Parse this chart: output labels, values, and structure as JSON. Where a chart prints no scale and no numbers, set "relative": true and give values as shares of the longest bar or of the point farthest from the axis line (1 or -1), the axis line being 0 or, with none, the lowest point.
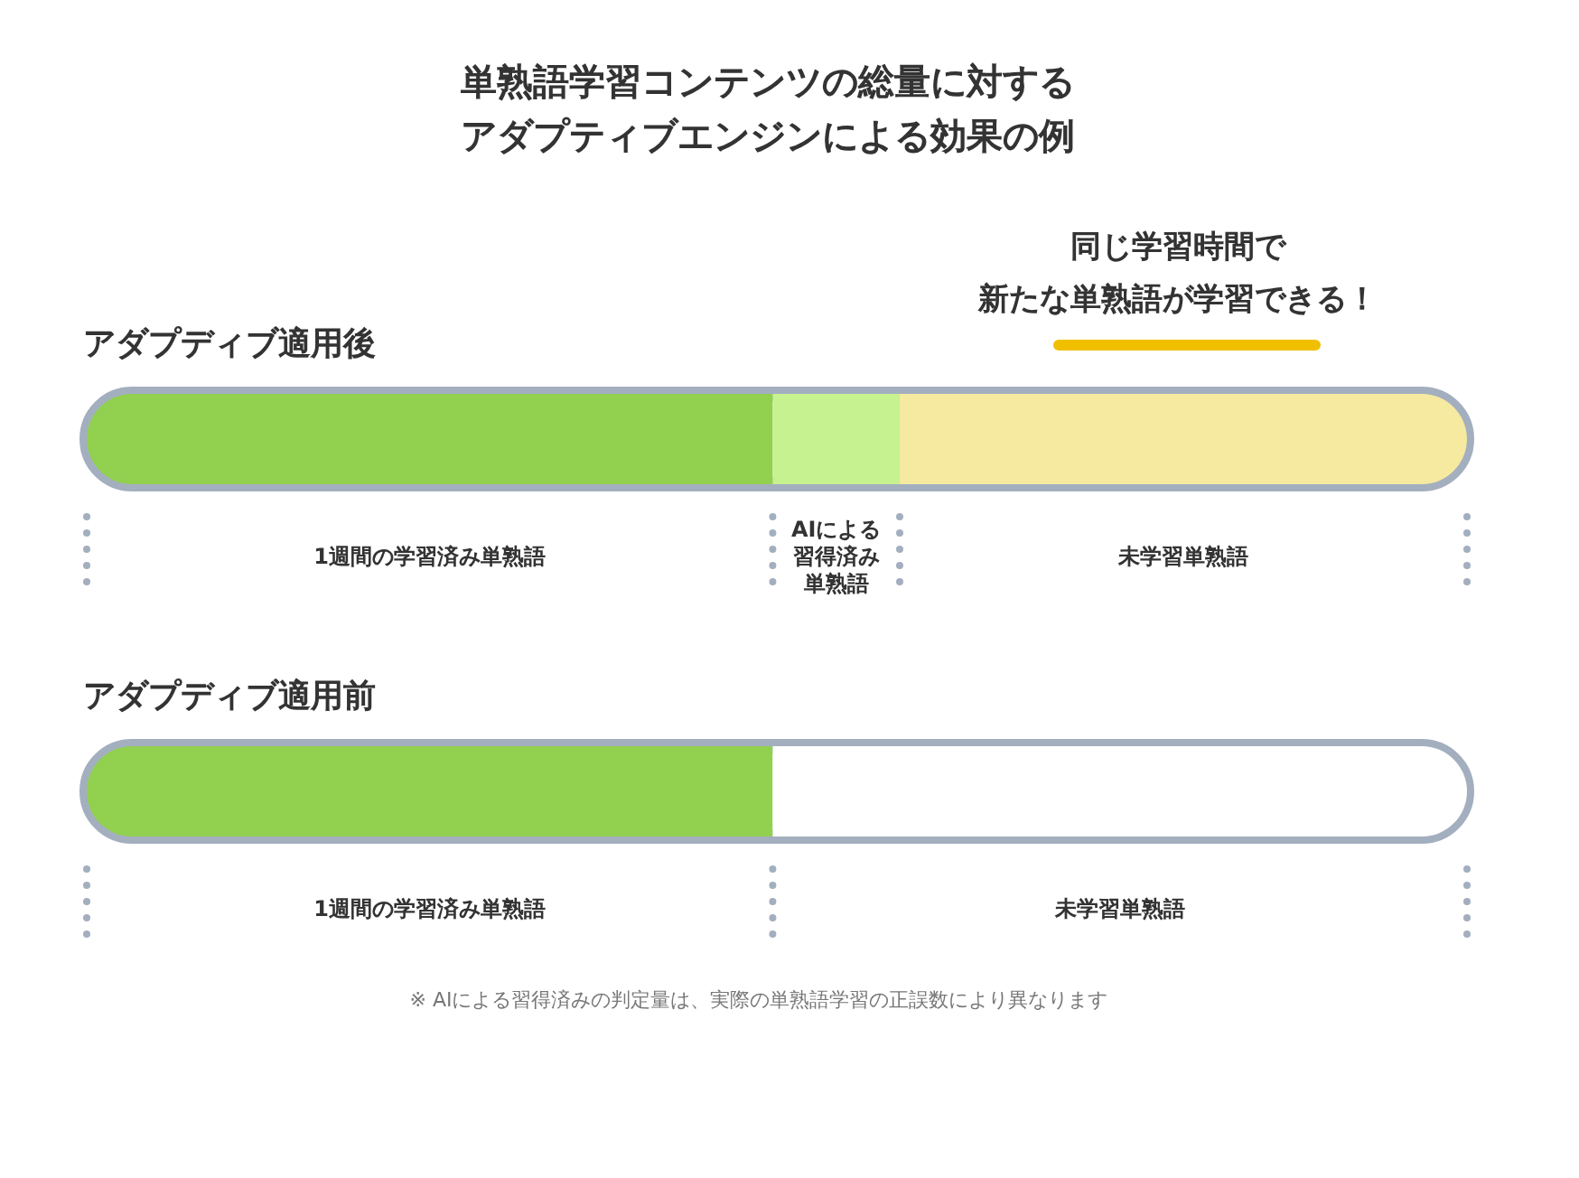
{
  "chart_data": {
    "type": "bar",
    "orientation": "horizontal",
    "stacked": true,
    "relative": true,
    "title": "単熟語学習コンテンツの総量に対するアダプティブエンジンによる効果の例",
    "categories": [
      "アダプディブ適用後",
      "アダプディブ適用前"
    ],
    "series": [
      {
        "name": "1週間の学習済み単熟語",
        "color": "#92d050",
        "values": [
          0.497,
          0.497
        ]
      },
      {
        "name": "AIによる習得済み単熟語",
        "color": "#c6f28f",
        "values": [
          0.092,
          null
        ]
      },
      {
        "name": "未学習単熟語",
        "colors": [
          "#f6e9a0",
          "#ffffff"
        ],
        "values": [
          0.411,
          0.503
        ]
      }
    ],
    "annotations": [
      "同じ学習時間で",
      "新たな単熟語が学習できる！",
      "※ AIによる習得済みの判定量は、実際の単熟語学習の正誤数により異なります"
    ]
  }
}
